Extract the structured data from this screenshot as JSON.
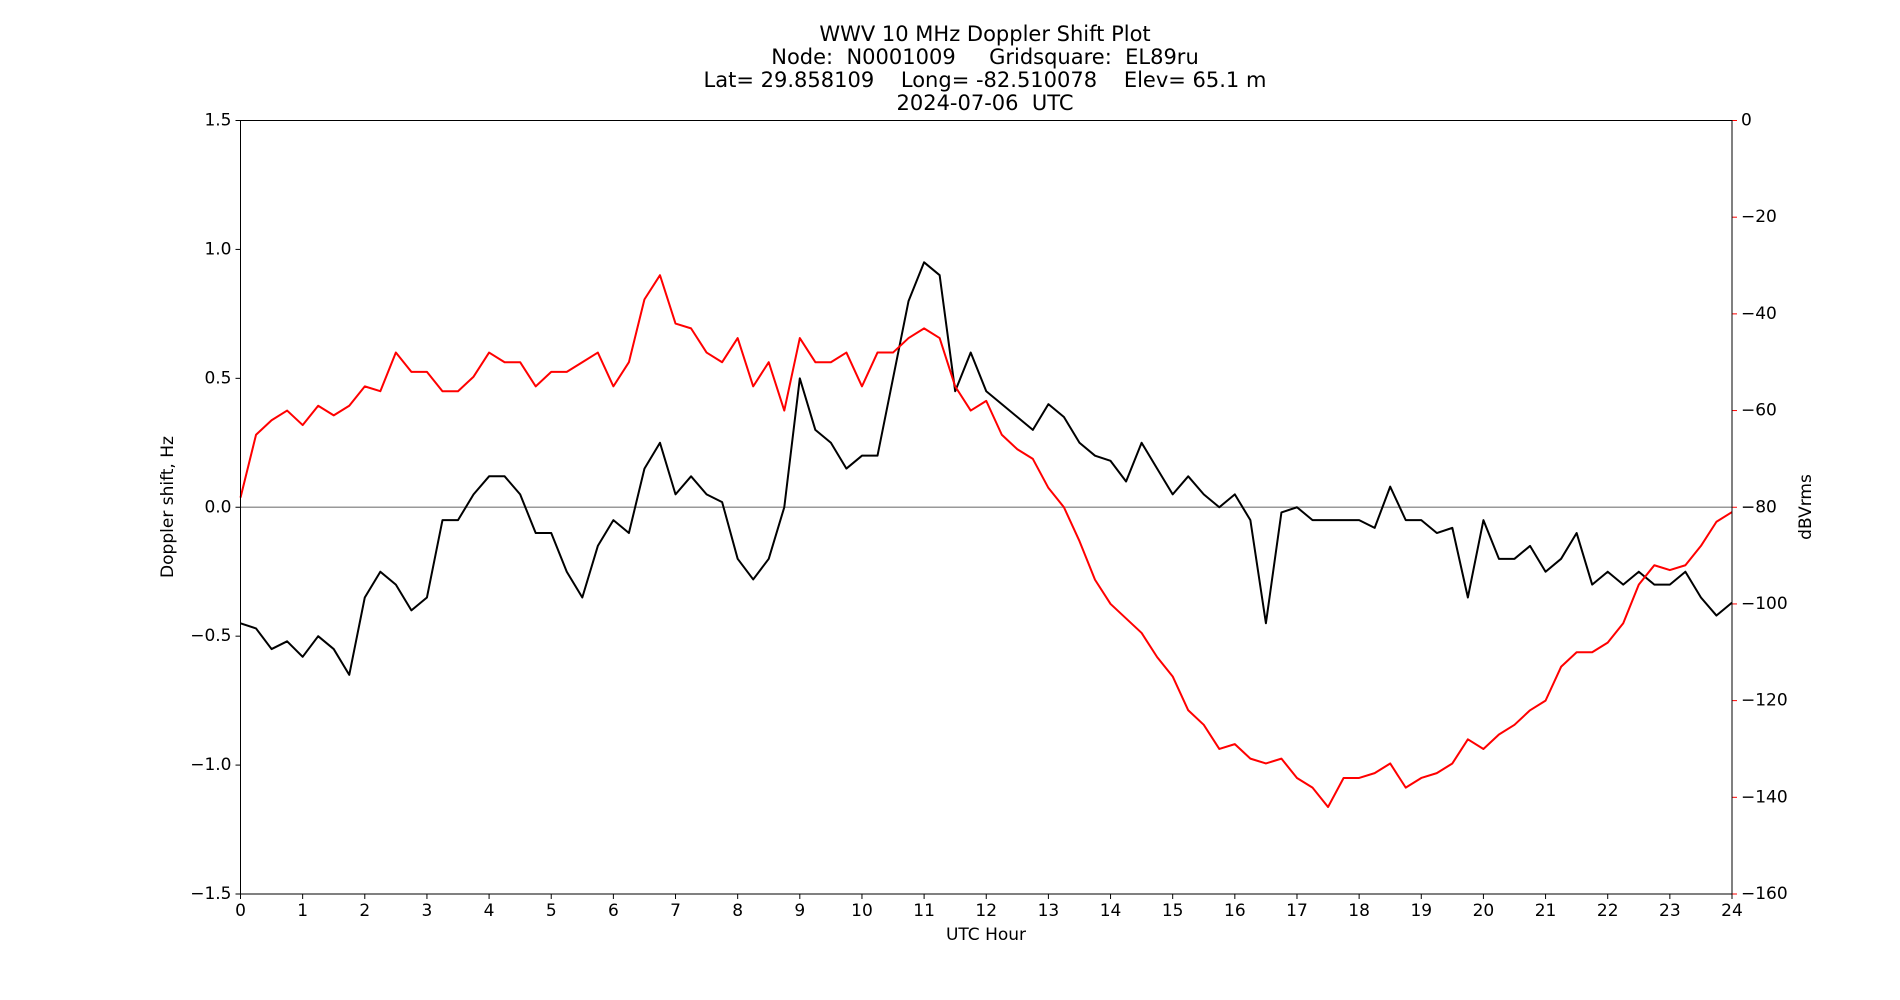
{
  "chart_data": {
    "type": "line",
    "title": [
      "WWV 10 MHz Doppler Shift Plot",
      "Node:  N0001009     Gridsquare:  EL89ru",
      "Lat= 29.858109    Long= -82.510078    Elev= 65.1 m",
      "2024-07-06  UTC"
    ],
    "xlabel": "UTC Hour",
    "ylabel": "Doppler shift, Hz",
    "y2label": "dBVrms",
    "y2color": "#ff0000",
    "x": [
      0,
      0.25,
      0.5,
      0.75,
      1,
      1.25,
      1.5,
      1.75,
      2,
      2.25,
      2.5,
      2.75,
      3,
      3.25,
      3.5,
      3.75,
      4,
      4.25,
      4.5,
      4.75,
      5,
      5.25,
      5.5,
      5.75,
      6,
      6.25,
      6.5,
      6.75,
      7,
      7.25,
      7.5,
      7.75,
      8,
      8.25,
      8.5,
      8.75,
      9,
      9.25,
      9.5,
      9.75,
      10,
      10.25,
      10.5,
      10.75,
      11,
      11.25,
      11.5,
      11.75,
      12,
      12.25,
      12.5,
      12.75,
      13,
      13.25,
      13.5,
      13.75,
      14,
      14.25,
      14.5,
      14.75,
      15,
      15.25,
      15.5,
      15.75,
      16,
      16.25,
      16.5,
      16.75,
      17,
      17.25,
      17.5,
      17.75,
      18,
      18.25,
      18.5,
      18.75,
      19,
      19.25,
      19.5,
      19.75,
      20,
      20.25,
      20.5,
      20.75,
      21,
      21.25,
      21.5,
      21.75,
      22,
      22.25,
      22.5,
      22.75,
      23,
      23.25,
      23.5,
      23.75,
      24
    ],
    "series": [
      {
        "color": "#000000",
        "values": [
          -0.45,
          -0.47,
          -0.55,
          -0.52,
          -0.58,
          -0.5,
          -0.55,
          -0.65,
          -0.35,
          -0.25,
          -0.3,
          -0.4,
          -0.35,
          -0.05,
          -0.05,
          0.05,
          0.12,
          0.12,
          0.05,
          -0.1,
          -0.1,
          -0.25,
          -0.35,
          -0.15,
          -0.05,
          -0.1,
          0.15,
          0.25,
          0.05,
          0.12,
          0.05,
          0.02,
          -0.2,
          -0.28,
          -0.2,
          0.0,
          0.5,
          0.3,
          0.25,
          0.15,
          0.2,
          0.2,
          0.5,
          0.8,
          0.95,
          0.9,
          0.45,
          0.6,
          0.45,
          0.4,
          0.35,
          0.3,
          0.4,
          0.35,
          0.25,
          0.2,
          0.18,
          0.1,
          0.25,
          0.15,
          0.05,
          0.12,
          0.05,
          0.0,
          0.05,
          -0.05,
          -0.45,
          -0.02,
          0.0,
          -0.05,
          -0.05,
          -0.05,
          -0.05,
          -0.08,
          0.08,
          -0.05,
          -0.05,
          -0.1,
          -0.08,
          -0.35,
          -0.05,
          -0.2,
          -0.2,
          -0.15,
          -0.25,
          -0.2,
          -0.1,
          -0.3,
          -0.25,
          -0.3,
          -0.25,
          -0.3,
          -0.3,
          -0.25,
          -0.35,
          -0.42,
          -0.37
        ]
      },
      {
        "color": "#ff0000",
        "axis": "y2",
        "values": [
          -78,
          -65,
          -62,
          -60,
          -63,
          -59,
          -61,
          -59,
          -55,
          -56,
          -48,
          -52,
          -52,
          -56,
          -56,
          -53,
          -48,
          -50,
          -50,
          -55,
          -52,
          -52,
          -50,
          -48,
          -55,
          -50,
          -37,
          -32,
          -42,
          -43,
          -48,
          -50,
          -45,
          -55,
          -50,
          -60,
          -45,
          -50,
          -50,
          -48,
          -55,
          -48,
          -48,
          -45,
          -43,
          -45,
          -55,
          -60,
          -58,
          -65,
          -68,
          -70,
          -76,
          -80,
          -87,
          -95,
          -100,
          -103,
          -106,
          -111,
          -115,
          -122,
          -125,
          -130,
          -129,
          -132,
          -133,
          -132,
          -136,
          -138,
          -142,
          -136,
          -136,
          -135,
          -133,
          -138,
          -136,
          -135,
          -133,
          -128,
          -130,
          -127,
          -125,
          -122,
          -120,
          -113,
          -110,
          -110,
          -108,
          -104,
          -96,
          -92,
          -93,
          -92,
          -88,
          -83,
          -81
        ]
      }
    ],
    "xlim": [
      0,
      24
    ],
    "xticks": [
      0,
      1,
      2,
      3,
      4,
      5,
      6,
      7,
      8,
      9,
      10,
      11,
      12,
      13,
      14,
      15,
      16,
      17,
      18,
      19,
      20,
      21,
      22,
      23,
      24
    ],
    "ylim": [
      -1.5,
      1.5
    ],
    "yticks": [
      {
        "value": -1.5,
        "label": "−1.5"
      },
      {
        "value": -1.0,
        "label": "−1.0"
      },
      {
        "value": -0.5,
        "label": "−0.5"
      },
      {
        "value": 0.0,
        "label": "0.0"
      },
      {
        "value": 0.5,
        "label": "0.5"
      },
      {
        "value": 1.0,
        "label": "1.0"
      },
      {
        "value": 1.5,
        "label": "1.5"
      }
    ],
    "y2lim": [
      -160,
      0
    ],
    "y2ticks": [
      {
        "value": -160,
        "label": "−160"
      },
      {
        "value": -140,
        "label": "−140"
      },
      {
        "value": -120,
        "label": "−120"
      },
      {
        "value": -100,
        "label": "−100"
      },
      {
        "value": -80,
        "label": "−80"
      },
      {
        "value": -60,
        "label": "−60"
      },
      {
        "value": -40,
        "label": "−40"
      },
      {
        "value": -20,
        "label": "−20"
      },
      0
    ],
    "zero_line": true
  }
}
